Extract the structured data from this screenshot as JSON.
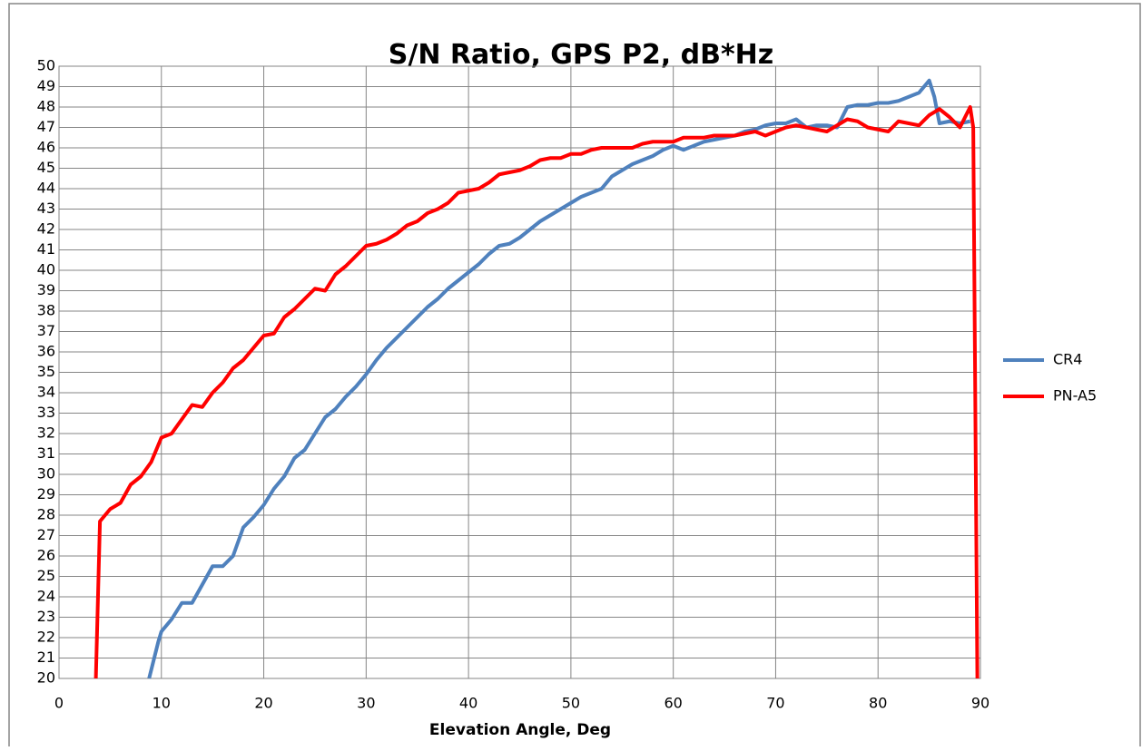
{
  "chart_data": {
    "type": "line",
    "title": "S/N Ratio, GPS P2, dB*Hz",
    "x_label": "Elevation Angle, Deg",
    "xlim": [
      0,
      90
    ],
    "ylim": [
      20,
      50
    ],
    "xticks": [
      0,
      10,
      20,
      30,
      40,
      50,
      60,
      70,
      80,
      90
    ],
    "yticks": [
      20,
      21,
      22,
      23,
      24,
      25,
      26,
      27,
      28,
      29,
      30,
      31,
      32,
      33,
      34,
      35,
      36,
      37,
      38,
      39,
      40,
      41,
      42,
      43,
      44,
      45,
      46,
      47,
      48,
      49,
      50
    ],
    "grid": true,
    "legend": "right",
    "series": [
      {
        "name": "CR4",
        "color": "#4f81bd",
        "x": [
          8.8,
          9.2,
          9.7,
          10,
          11,
          12,
          13,
          14,
          15,
          16,
          17,
          18,
          19,
          20,
          21,
          22,
          23,
          24,
          25,
          26,
          27,
          28,
          29,
          30,
          31,
          32,
          33,
          34,
          35,
          36,
          37,
          38,
          39,
          40,
          41,
          42,
          43,
          44,
          45,
          46,
          47,
          48,
          49,
          50,
          51,
          52,
          53,
          54,
          55,
          56,
          57,
          58,
          59,
          60,
          61,
          62,
          63,
          64,
          65,
          66,
          67,
          68,
          69,
          70,
          71,
          72,
          73,
          74,
          75,
          76,
          77,
          78,
          79,
          80,
          81,
          82,
          83,
          84,
          85,
          85.5,
          86,
          87,
          88,
          89
        ],
        "values": [
          20,
          20.8,
          21.8,
          22.3,
          22.9,
          23.7,
          23.7,
          24.6,
          25.5,
          25.5,
          26,
          27.4,
          27.9,
          28.5,
          29.3,
          29.9,
          30.8,
          31.2,
          32,
          32.8,
          33.2,
          33.8,
          34.3,
          34.9,
          35.6,
          36.2,
          36.7,
          37.2,
          37.7,
          38.2,
          38.6,
          39.1,
          39.5,
          39.9,
          40.3,
          40.8,
          41.2,
          41.3,
          41.6,
          42,
          42.4,
          42.7,
          43,
          43.3,
          43.6,
          43.8,
          44,
          44.6,
          44.9,
          45.2,
          45.4,
          45.6,
          45.9,
          46.1,
          45.9,
          46.1,
          46.3,
          46.4,
          46.5,
          46.6,
          46.8,
          46.9,
          47.1,
          47.2,
          47.2,
          47.4,
          47,
          47.1,
          47.1,
          47,
          48,
          48.1,
          48.1,
          48.2,
          48.2,
          48.3,
          48.5,
          48.7,
          49.3,
          48.5,
          47.2,
          47.3,
          47.2,
          47.3
        ]
      },
      {
        "name": "PN-A5",
        "color": "#ff0000",
        "x": [
          3.6,
          4,
          5,
          6,
          7,
          8,
          9,
          10,
          11,
          12,
          13,
          14,
          15,
          16,
          17,
          18,
          19,
          20,
          21,
          22,
          23,
          24,
          25,
          26,
          27,
          28,
          29,
          30,
          31,
          32,
          33,
          34,
          35,
          36,
          37,
          38,
          39,
          40,
          41,
          42,
          43,
          44,
          45,
          46,
          47,
          48,
          49,
          50,
          51,
          52,
          53,
          54,
          55,
          56,
          57,
          58,
          59,
          60,
          61,
          62,
          63,
          64,
          65,
          66,
          67,
          68,
          69,
          70,
          71,
          72,
          73,
          74,
          75,
          76,
          77,
          78,
          79,
          80,
          81,
          82,
          83,
          84,
          85,
          86,
          87,
          88,
          89,
          89.3,
          89.7
        ],
        "values": [
          20,
          27.7,
          28.3,
          28.6,
          29.5,
          29.9,
          30.6,
          31.8,
          32,
          32.7,
          33.4,
          33.3,
          34,
          34.5,
          35.2,
          35.6,
          36.2,
          36.8,
          36.9,
          37.7,
          38.1,
          38.6,
          39.1,
          39,
          39.8,
          40.2,
          40.7,
          41.2,
          41.3,
          41.5,
          41.8,
          42.2,
          42.4,
          42.8,
          43,
          43.3,
          43.8,
          43.9,
          44,
          44.3,
          44.7,
          44.8,
          44.9,
          45.1,
          45.4,
          45.5,
          45.5,
          45.7,
          45.7,
          45.9,
          46,
          46,
          46,
          46,
          46.2,
          46.3,
          46.3,
          46.3,
          46.5,
          46.5,
          46.5,
          46.6,
          46.6,
          46.6,
          46.7,
          46.8,
          46.6,
          46.8,
          47,
          47.1,
          47,
          46.9,
          46.8,
          47.1,
          47.4,
          47.3,
          47,
          46.9,
          46.8,
          47.3,
          47.2,
          47.1,
          47.6,
          47.9,
          47.5,
          47,
          48,
          47,
          20
        ]
      }
    ]
  }
}
